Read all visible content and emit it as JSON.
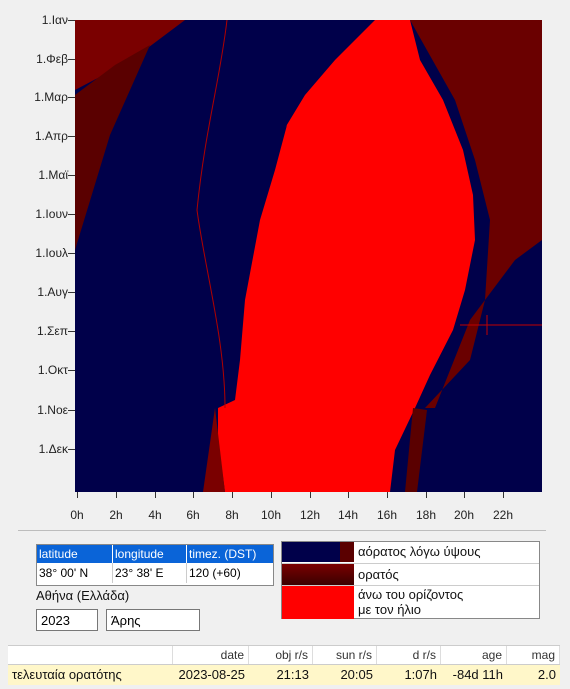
{
  "plot": {
    "y_labels": [
      "1.Ιαν",
      "1.Φεβ",
      "1.Μαρ",
      "1.Απρ",
      "1.Μαϊ",
      "1.Ιουν",
      "1.Ιουλ",
      "1.Αυγ",
      "1.Σεπ",
      "1.Οκτ",
      "1.Νοε",
      "1.Δεκ"
    ],
    "x_labels": [
      "0h",
      "2h",
      "4h",
      "6h",
      "8h",
      "10h",
      "12h",
      "14h",
      "16h",
      "18h",
      "20h",
      "22h"
    ],
    "colors": {
      "invisible": "#00004a",
      "visible": "#7a0000",
      "sun": "#ff0000"
    }
  },
  "location": {
    "headers": {
      "lat": "latitude",
      "lon": "longitude",
      "tz": "timez. (DST)"
    },
    "values": {
      "lat": "38° 00' N",
      "lon": "23° 38' E",
      "tz": "120 (+60)"
    },
    "city": "Αθήνα (Ελλάδα)",
    "year": "2023",
    "object": "Άρης"
  },
  "legend": [
    {
      "label": "αόρατος λόγω ύψους"
    },
    {
      "label": "ορατός"
    },
    {
      "label1": "άνω του ορίζοντος",
      "label2": "με τον ήλιο"
    }
  ],
  "table": {
    "headers": {
      "date": "date",
      "obj": "obj r/s",
      "sun": "sun r/s",
      "d": "d r/s",
      "age": "age",
      "mag": "mag"
    },
    "row": {
      "name": "τελευταία ορατότης",
      "date": "2023-08-25",
      "obj": "21:13",
      "sun": "20:05",
      "d": "1:07h",
      "age": "-84d 11h",
      "mag": "2.0"
    }
  }
}
